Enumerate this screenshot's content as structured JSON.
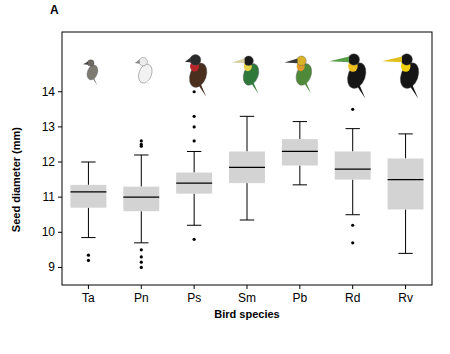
{
  "chart_data": {
    "type": "box",
    "panel_label": "A",
    "x_label": "Bird species",
    "y_label": "Seed diameter (mm)",
    "categories": [
      "Ta",
      "Pn",
      "Ps",
      "Sm",
      "Pb",
      "Rd",
      "Rv"
    ],
    "color": "#d3d3d3",
    "ylim": [
      8.5,
      15.7
    ],
    "yticks": [
      9,
      10,
      11,
      12,
      13,
      14
    ],
    "boxes": [
      {
        "min": 9.85,
        "q1": 10.7,
        "median": 11.15,
        "q3": 11.35,
        "max": 12.0,
        "outliers": [
          9.35,
          9.2
        ]
      },
      {
        "min": 9.7,
        "q1": 10.6,
        "median": 11.0,
        "q3": 11.3,
        "max": 12.2,
        "outliers": [
          12.6,
          12.5,
          12.45,
          9.5,
          9.3,
          9.15,
          9.0
        ]
      },
      {
        "min": 10.2,
        "q1": 11.1,
        "median": 11.4,
        "q3": 11.7,
        "max": 12.3,
        "outliers": [
          12.6,
          13.0,
          13.3,
          14.0,
          9.8
        ]
      },
      {
        "min": 10.35,
        "q1": 11.4,
        "median": 11.85,
        "q3": 12.3,
        "max": 13.3,
        "outliers": []
      },
      {
        "min": 11.35,
        "q1": 11.9,
        "median": 12.3,
        "q3": 12.65,
        "max": 13.15,
        "outliers": []
      },
      {
        "min": 10.5,
        "q1": 11.5,
        "median": 11.8,
        "q3": 12.3,
        "max": 12.95,
        "outliers": [
          13.5,
          10.2,
          9.7
        ]
      },
      {
        "min": 9.4,
        "q1": 10.65,
        "median": 11.5,
        "q3": 12.1,
        "max": 12.8,
        "outliers": []
      }
    ]
  }
}
